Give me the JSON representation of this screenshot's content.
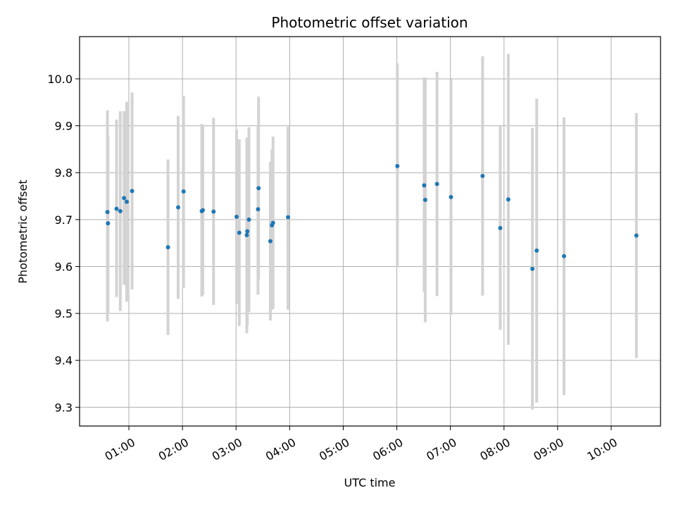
{
  "chart_data": {
    "type": "scatter",
    "title": "Photometric offset variation",
    "xlabel": "UTC time",
    "ylabel": "Photometric offset",
    "x_unit": "hours UTC",
    "xlim": [
      0.08,
      10.92
    ],
    "ylim": [
      9.26,
      10.09
    ],
    "grid": true,
    "x_ticks": [
      {
        "value": 1,
        "label": "01:00"
      },
      {
        "value": 2,
        "label": "02:00"
      },
      {
        "value": 3,
        "label": "03:00"
      },
      {
        "value": 4,
        "label": "04:00"
      },
      {
        "value": 5,
        "label": "05:00"
      },
      {
        "value": 6,
        "label": "06:00"
      },
      {
        "value": 7,
        "label": "07:00"
      },
      {
        "value": 8,
        "label": "08:00"
      },
      {
        "value": 9,
        "label": "09:00"
      },
      {
        "value": 10,
        "label": "10:00"
      }
    ],
    "y_ticks": [
      {
        "value": 9.3,
        "label": "9.3"
      },
      {
        "value": 9.4,
        "label": "9.4"
      },
      {
        "value": 9.5,
        "label": "9.5"
      },
      {
        "value": 9.6,
        "label": "9.6"
      },
      {
        "value": 9.7,
        "label": "9.7"
      },
      {
        "value": 9.8,
        "label": "9.8"
      },
      {
        "value": 9.9,
        "label": "9.9"
      },
      {
        "value": 10.0,
        "label": "10.0"
      }
    ],
    "point_color": "#1f77b4",
    "errorbar_color": "#d3d3d3",
    "points": [
      {
        "x": 0.6,
        "y": 9.716,
        "lo": 9.483,
        "hi": 9.933
      },
      {
        "x": 0.61,
        "y": 9.692,
        "lo": 9.5,
        "hi": 9.88
      },
      {
        "x": 0.77,
        "y": 9.723,
        "lo": 9.535,
        "hi": 9.913
      },
      {
        "x": 0.84,
        "y": 9.718,
        "lo": 9.505,
        "hi": 9.931
      },
      {
        "x": 0.91,
        "y": 9.746,
        "lo": 9.561,
        "hi": 9.931
      },
      {
        "x": 0.96,
        "y": 9.738,
        "lo": 9.525,
        "hi": 9.951
      },
      {
        "x": 1.06,
        "y": 9.761,
        "lo": 9.551,
        "hi": 9.971
      },
      {
        "x": 1.73,
        "y": 9.641,
        "lo": 9.454,
        "hi": 9.828
      },
      {
        "x": 1.92,
        "y": 9.726,
        "lo": 9.531,
        "hi": 9.921
      },
      {
        "x": 2.02,
        "y": 9.76,
        "lo": 9.554,
        "hi": 9.964
      },
      {
        "x": 2.36,
        "y": 9.718,
        "lo": 9.536,
        "hi": 9.904
      },
      {
        "x": 2.38,
        "y": 9.72,
        "lo": 9.54,
        "hi": 9.9
      },
      {
        "x": 2.58,
        "y": 9.717,
        "lo": 9.518,
        "hi": 9.917
      },
      {
        "x": 3.01,
        "y": 9.706,
        "lo": 9.52,
        "hi": 9.892
      },
      {
        "x": 3.06,
        "y": 9.672,
        "lo": 9.473,
        "hi": 9.871
      },
      {
        "x": 3.2,
        "y": 9.667,
        "lo": 9.458,
        "hi": 9.872
      },
      {
        "x": 3.21,
        "y": 9.675,
        "lo": 9.475,
        "hi": 9.875
      },
      {
        "x": 3.24,
        "y": 9.7,
        "lo": 9.503,
        "hi": 9.897
      },
      {
        "x": 3.41,
        "y": 9.722,
        "lo": 9.54,
        "hi": 9.9
      },
      {
        "x": 3.42,
        "y": 9.767,
        "lo": 9.572,
        "hi": 9.962
      },
      {
        "x": 3.64,
        "y": 9.654,
        "lo": 9.485,
        "hi": 9.823
      },
      {
        "x": 3.67,
        "y": 9.688,
        "lo": 9.508,
        "hi": 9.85
      },
      {
        "x": 3.69,
        "y": 9.693,
        "lo": 9.51,
        "hi": 9.877
      },
      {
        "x": 3.97,
        "y": 9.705,
        "lo": 9.508,
        "hi": 9.898
      },
      {
        "x": 6.01,
        "y": 9.814,
        "lo": 9.598,
        "hi": 10.033
      },
      {
        "x": 6.51,
        "y": 9.773,
        "lo": 9.546,
        "hi": 10.003
      },
      {
        "x": 6.53,
        "y": 9.742,
        "lo": 9.481,
        "hi": 10.003
      },
      {
        "x": 6.75,
        "y": 9.776,
        "lo": 9.537,
        "hi": 10.015
      },
      {
        "x": 7.01,
        "y": 9.748,
        "lo": 9.497,
        "hi": 9.999
      },
      {
        "x": 7.6,
        "y": 9.793,
        "lo": 9.538,
        "hi": 10.048
      },
      {
        "x": 7.93,
        "y": 9.682,
        "lo": 9.465,
        "hi": 9.899
      },
      {
        "x": 8.08,
        "y": 9.743,
        "lo": 9.433,
        "hi": 10.053
      },
      {
        "x": 8.53,
        "y": 9.595,
        "lo": 9.295,
        "hi": 9.895
      },
      {
        "x": 8.61,
        "y": 9.634,
        "lo": 9.31,
        "hi": 9.958
      },
      {
        "x": 9.12,
        "y": 9.622,
        "lo": 9.326,
        "hi": 9.918
      },
      {
        "x": 10.47,
        "y": 9.666,
        "lo": 9.405,
        "hi": 9.927
      }
    ]
  }
}
